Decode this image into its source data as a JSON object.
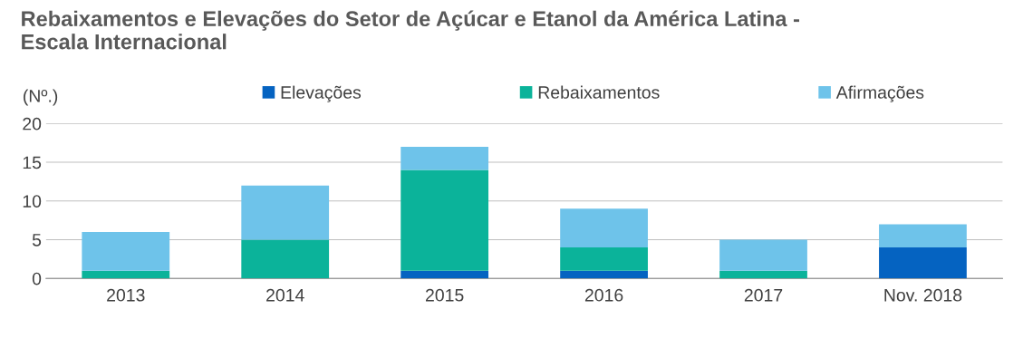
{
  "chart_data": {
    "type": "bar",
    "title": "Rebaixamentos e Elevações do Setor de Açúcar e Etanol da América Latina -\nEscala Internacional",
    "ylabel": "(Nº.)",
    "categories": [
      "2013",
      "2014",
      "2015",
      "2016",
      "2017",
      "Nov. 2018"
    ],
    "stacked": true,
    "series": [
      {
        "name": "Elevações",
        "color": "#0563c1",
        "values": [
          0,
          0,
          1,
          1,
          0,
          4
        ]
      },
      {
        "name": "Rebaixamentos",
        "color": "#0bb39a",
        "values": [
          1,
          5,
          13,
          3,
          1,
          0
        ]
      },
      {
        "name": "Afirmações",
        "color": "#6ec3ea",
        "values": [
          5,
          7,
          3,
          5,
          4,
          3
        ]
      }
    ],
    "ylim": [
      0,
      20
    ],
    "yticks": [
      0,
      5,
      10,
      15,
      20
    ],
    "grid": "y",
    "legend": "top"
  }
}
